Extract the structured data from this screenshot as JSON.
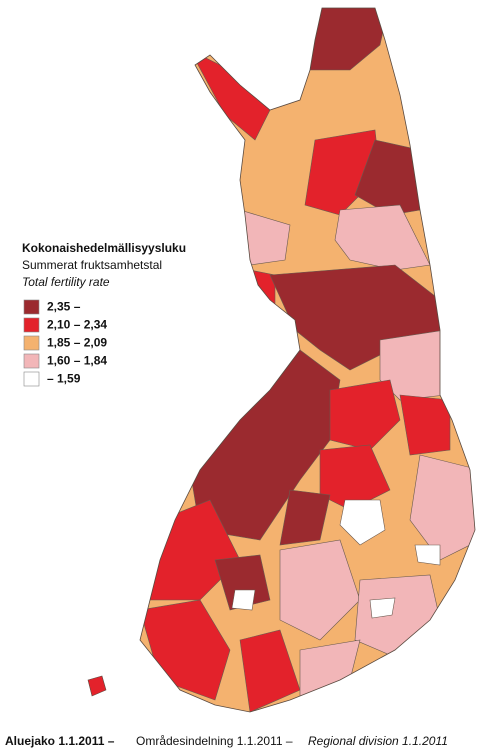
{
  "legend": {
    "title": "Kokonaishedelmällisyysluku",
    "subtitle": "Summerat fruktsamhetstal",
    "subtitle_en": "Total fertility rate",
    "classes": [
      {
        "label": "2,35 –",
        "color": "#9b2a2f"
      },
      {
        "label": "2,10 – 2,34",
        "color": "#e3222b"
      },
      {
        "label": "1,85 – 2,09",
        "color": "#f4b26f"
      },
      {
        "label": "1,60 – 1,84",
        "color": "#f2b6b8"
      },
      {
        "label": "– 1,59",
        "color": "#ffffff"
      }
    ]
  },
  "footer": {
    "fi": "Aluejako 1.1.2011 –",
    "sv": "Områdesindelning 1.1.2011 –",
    "en": "Regional division 1.1.2011"
  }
}
